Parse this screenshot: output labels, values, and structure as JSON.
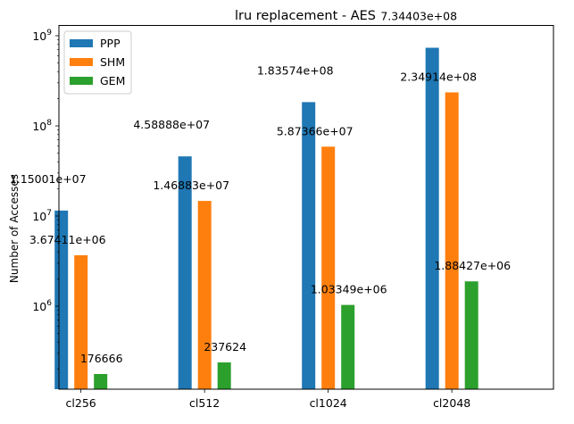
{
  "chart_data": {
    "type": "bar",
    "title": "lru replacement - AES",
    "xlabel": "",
    "ylabel": "Number of Accesses",
    "yscale": "log",
    "ylim": [
      120000,
      1300000000
    ],
    "categories": [
      "cl256",
      "cl512",
      "cl1024",
      "cl2048"
    ],
    "series": [
      {
        "name": "PPP",
        "color": "#1f77b4",
        "values": [
          11500100,
          45888800,
          183574000,
          734403000
        ],
        "labels": [
          "1.15001e+07",
          "4.58888e+07",
          "1.83574e+08",
          "7.34403e+08"
        ]
      },
      {
        "name": "SHM",
        "color": "#ff7f0e",
        "values": [
          3674110,
          14688300,
          58736600,
          234914000
        ],
        "labels": [
          "3.67411e+06",
          "1.46883e+07",
          "5.87366e+07",
          "2.34914e+08"
        ]
      },
      {
        "name": "GEM",
        "color": "#2ca02c",
        "values": [
          176666,
          237624,
          1033490,
          1884270
        ],
        "labels": [
          "176666",
          "237624",
          "1.03349e+06",
          "1.88427e+06"
        ]
      }
    ],
    "y_ticks": [
      {
        "value": 1000000,
        "base": "10",
        "exp": "6"
      },
      {
        "value": 10000000,
        "base": "10",
        "exp": "7"
      },
      {
        "value": 100000000,
        "base": "10",
        "exp": "8"
      },
      {
        "value": 1000000000,
        "base": "10",
        "exp": "9"
      }
    ],
    "legend": {
      "position": "upper-left"
    },
    "grid": false
  }
}
